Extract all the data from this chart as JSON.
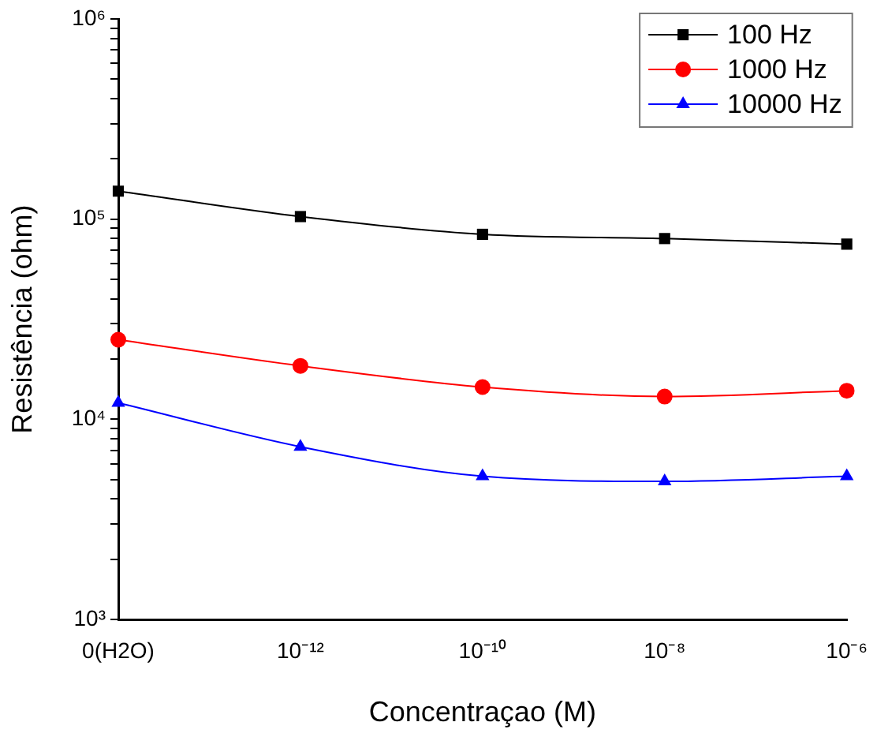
{
  "chart_data": {
    "type": "line",
    "xlabel": "Concentraçao (M)",
    "ylabel": "Resistência (ohm)",
    "categories": [
      "0(H2O)",
      "10⁻¹²",
      "10⁻¹⁰",
      "10⁻⁸",
      "10⁻⁶"
    ],
    "series": [
      {
        "name": "100 Hz",
        "color": "#000000",
        "marker": "square",
        "values": [
          138000,
          103000,
          84000,
          80000,
          75000
        ]
      },
      {
        "name": "1000 Hz",
        "color": "#ff0000",
        "marker": "circle",
        "values": [
          25000,
          18500,
          14500,
          13000,
          13900
        ]
      },
      {
        "name": "10000 Hz",
        "color": "#0000ff",
        "marker": "triangle",
        "values": [
          12100,
          7300,
          5200,
          4900,
          5200
        ]
      }
    ],
    "log": "y",
    "ylim": [
      1000,
      1000000
    ],
    "yticks": [
      {
        "value": 1000,
        "label": "10³"
      },
      {
        "value": 2000,
        "label": null
      },
      {
        "value": 3000,
        "label": null
      },
      {
        "value": 4000,
        "label": null
      },
      {
        "value": 5000,
        "label": null
      },
      {
        "value": 6000,
        "label": null
      },
      {
        "value": 7000,
        "label": null
      },
      {
        "value": 8000,
        "label": null
      },
      {
        "value": 9000,
        "label": null
      },
      {
        "value": 10000,
        "label": "10⁴"
      },
      {
        "value": 20000,
        "label": null
      },
      {
        "value": 30000,
        "label": null
      },
      {
        "value": 40000,
        "label": null
      },
      {
        "value": 50000,
        "label": null
      },
      {
        "value": 60000,
        "label": null
      },
      {
        "value": 70000,
        "label": null
      },
      {
        "value": 80000,
        "label": null
      },
      {
        "value": 90000,
        "label": null
      },
      {
        "value": 100000,
        "label": "10⁵"
      },
      {
        "value": 200000,
        "label": null
      },
      {
        "value": 300000,
        "label": null
      },
      {
        "value": 400000,
        "label": null
      },
      {
        "value": 500000,
        "label": null
      },
      {
        "value": 600000,
        "label": null
      },
      {
        "value": 700000,
        "label": null
      },
      {
        "value": 800000,
        "label": null
      },
      {
        "value": 900000,
        "label": null
      },
      {
        "value": 1000000,
        "label": "10⁶"
      }
    ],
    "grid": false,
    "legend": "top right",
    "line_style": "solid"
  }
}
